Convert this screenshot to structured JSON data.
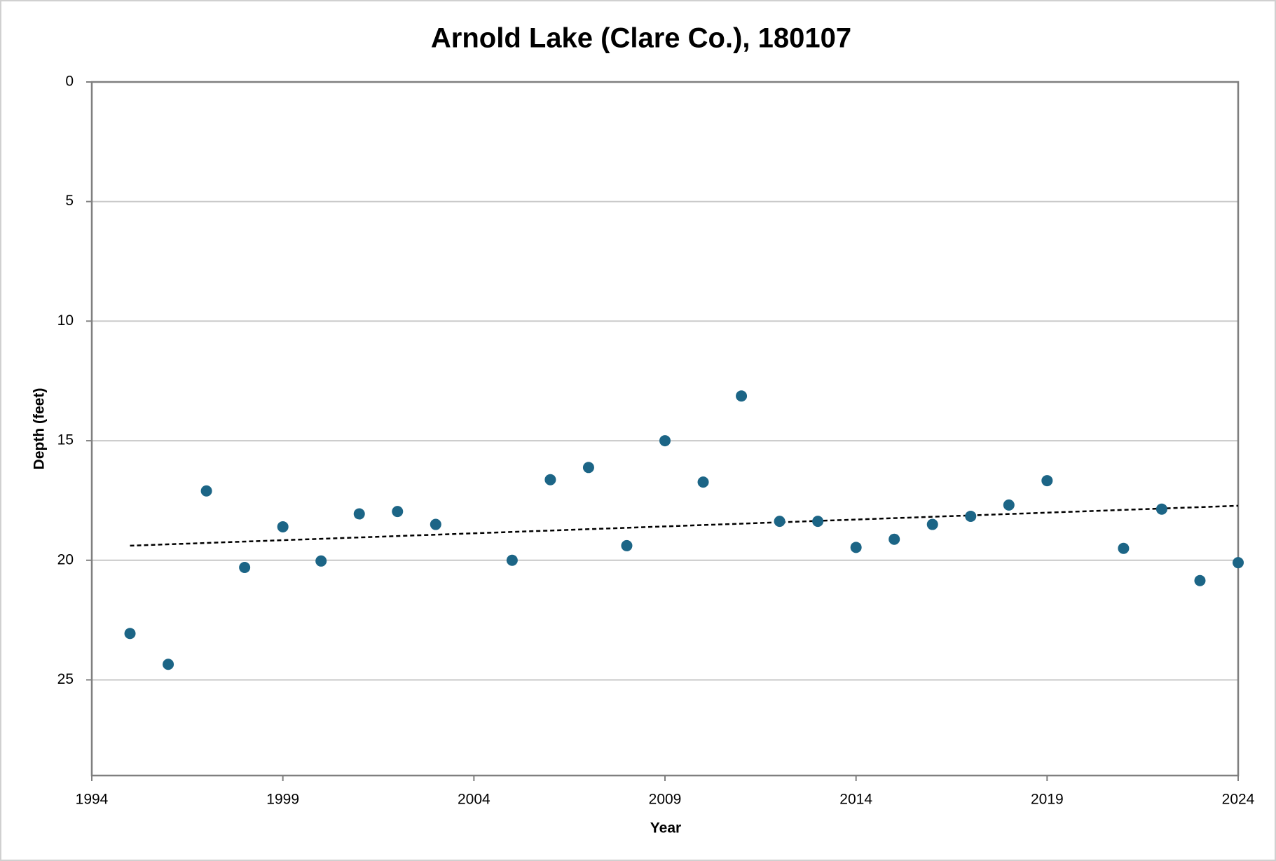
{
  "chart_data": {
    "type": "scatter",
    "title": "Arnold Lake (Clare Co.), 180107",
    "x_label": "Year",
    "y_label": "Depth (feet)",
    "xlim": [
      1994,
      2024
    ],
    "xticks": [
      1994,
      1999,
      2004,
      2009,
      2014,
      2019,
      2024
    ],
    "ylim": [
      0,
      29
    ],
    "yticks": [
      0,
      5,
      10,
      15,
      20,
      25
    ],
    "y_inverted": true,
    "grid": true,
    "series": [
      {
        "name": "Depth",
        "color": "#1c6586",
        "x": [
          1995,
          1996,
          1997,
          1998,
          1999,
          2000,
          2001,
          2002,
          2003,
          2005,
          2006,
          2007,
          2008,
          2009,
          2010,
          2011,
          2012,
          2013,
          2014,
          2015,
          2016,
          2017,
          2018,
          2019,
          2021,
          2022,
          2023,
          2024
        ],
        "values": [
          23.06,
          24.35,
          17.1,
          20.3,
          18.6,
          20.03,
          18.06,
          17.96,
          18.5,
          20.0,
          16.63,
          16.12,
          19.39,
          15.0,
          16.73,
          13.13,
          18.37,
          18.37,
          19.46,
          19.12,
          18.5,
          18.16,
          17.69,
          16.67,
          19.5,
          17.86,
          20.85,
          20.1
        ]
      }
    ],
    "trendline": {
      "x": [
        1995,
        2024
      ],
      "values": [
        19.39,
        17.72
      ],
      "color": "#000000"
    }
  }
}
